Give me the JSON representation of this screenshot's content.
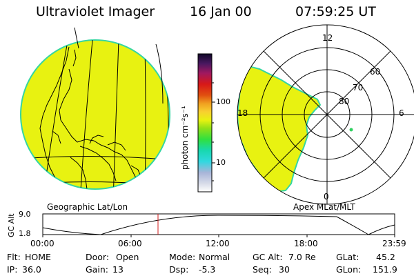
{
  "header": {
    "title": "Ultraviolet Imager",
    "date": "16 Jan 00",
    "time": "07:59:25 UT"
  },
  "colors": {
    "aurora_fill": "#e8f211",
    "aurora_edge": "#35d6a2",
    "grid": "#000000",
    "marker": "#d01818"
  },
  "left_panel": {
    "label": "Geographic Lat/Lon"
  },
  "right_panel": {
    "label": "Apex MLat/MLT",
    "mlt_labels": {
      "top": "12",
      "left": "18",
      "right": "6",
      "bottom": "0"
    },
    "lat_labels": [
      "60",
      "70",
      "80"
    ]
  },
  "colorbar": {
    "unit_label": "photon cm⁻²s⁻¹",
    "ticks": [
      "100",
      "10"
    ]
  },
  "timeline": {
    "y_axis_label": "GC Alt",
    "y_ticks": [
      "9.0",
      "1.8"
    ],
    "x_ticks": [
      "00:00",
      "06:00",
      "12:00",
      "18:00",
      "23:59"
    ]
  },
  "info": {
    "row1": [
      {
        "key": "Flt:",
        "value": "HOME"
      },
      {
        "key": "Door:",
        "value": "Open"
      },
      {
        "key": "Mode:",
        "value": "Normal"
      },
      {
        "key": "GC Alt:",
        "value": "7.0 Re"
      },
      {
        "key": "GLat:",
        "value": "45.2"
      }
    ],
    "row2": [
      {
        "key": "IP:",
        "value": "36.0"
      },
      {
        "key": "Gain:",
        "value": "13"
      },
      {
        "key": "Dsp:",
        "value": "-5.3"
      },
      {
        "key": "Seq:",
        "value": "30"
      },
      {
        "key": "GLon:",
        "value": "151.9"
      }
    ]
  }
}
